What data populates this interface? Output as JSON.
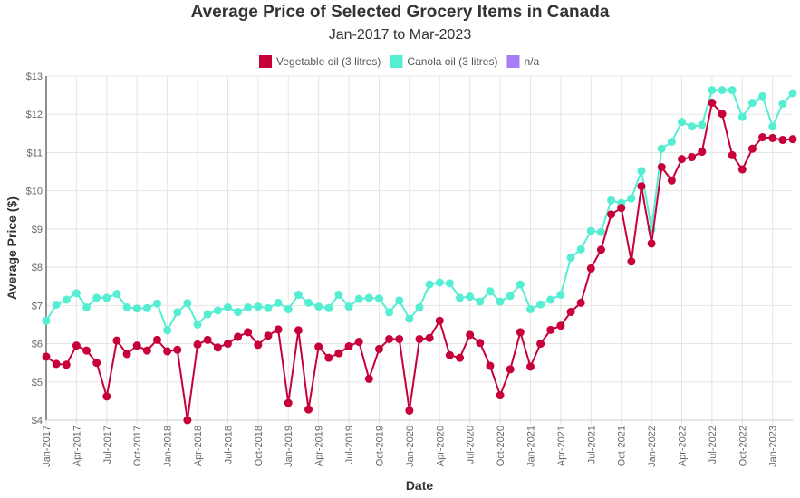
{
  "chart_data": {
    "type": "line",
    "title": "Average Price of Selected Grocery Items in Canada",
    "subtitle": "Jan-2017 to Mar-2023",
    "xlabel": "Date",
    "ylabel": "Average Price ($)",
    "ylim": [
      4,
      13
    ],
    "yticks": [
      "$4",
      "$5",
      "$6",
      "$7",
      "$8",
      "$9",
      "$10",
      "$11",
      "$12",
      "$13"
    ],
    "xticks": [
      "Jan-2017",
      "Apr-2017",
      "Jul-2017",
      "Oct-2017",
      "Jan-2018",
      "Apr-2018",
      "Jul-2018",
      "Oct-2018",
      "Jan-2019",
      "Apr-2019",
      "Jul-2019",
      "Oct-2019",
      "Jan-2020",
      "Apr-2020",
      "Jul-2020",
      "Oct-2020",
      "Jan-2021",
      "Apr-2021",
      "Jul-2021",
      "Oct-2021",
      "Jan-2022",
      "Apr-2022",
      "Jul-2022",
      "Oct-2022",
      "Jan-2023"
    ],
    "x_range": [
      "Jan-2017",
      "Mar-2023"
    ],
    "grid": true,
    "legend_position": "top",
    "legend": [
      {
        "name": "Vegetable oil (3 litres)",
        "color": "#c8003a"
      },
      {
        "name": "Canola oil (3 litres)",
        "color": "#55eed2"
      },
      {
        "name": "n/a",
        "color": "#a67cf7"
      }
    ],
    "series": [
      {
        "name": "Vegetable oil (3 litres)",
        "color": "#c8003a",
        "values": [
          5.66,
          5.47,
          5.45,
          5.95,
          5.82,
          5.5,
          4.62,
          6.08,
          5.73,
          5.95,
          5.82,
          6.1,
          5.8,
          5.84,
          4.0,
          5.98,
          6.1,
          5.9,
          6.0,
          6.18,
          6.3,
          5.97,
          6.21,
          6.37,
          4.45,
          6.35,
          4.28,
          5.92,
          5.63,
          5.75,
          5.93,
          6.05,
          5.08,
          5.86,
          6.12,
          6.12,
          4.25,
          6.12,
          6.15,
          6.6,
          5.7,
          5.63,
          6.23,
          6.02,
          5.42,
          4.65,
          5.33,
          6.3,
          5.4,
          6.0,
          6.36,
          6.47,
          6.83,
          7.07,
          7.97,
          8.46,
          9.38,
          9.55,
          8.15,
          10.12,
          8.62,
          10.62,
          10.27,
          10.83,
          10.88,
          11.02,
          12.3,
          12.01,
          10.93,
          10.56,
          11.1,
          11.4,
          11.38,
          11.33,
          11.35
        ]
      },
      {
        "name": "Canola oil (3 litres)",
        "color": "#55eed2",
        "values": [
          6.6,
          7.02,
          7.15,
          7.32,
          6.95,
          7.2,
          7.2,
          7.3,
          6.95,
          6.92,
          6.93,
          7.05,
          6.35,
          6.82,
          7.06,
          6.5,
          6.77,
          6.87,
          6.95,
          6.83,
          6.95,
          6.97,
          6.93,
          7.07,
          6.9,
          7.28,
          7.07,
          6.97,
          6.93,
          7.28,
          6.97,
          7.17,
          7.2,
          7.18,
          6.82,
          7.13,
          6.65,
          6.95,
          7.55,
          7.6,
          7.58,
          7.2,
          7.23,
          7.1,
          7.37,
          7.1,
          7.25,
          7.55,
          6.9,
          7.03,
          7.15,
          7.28,
          8.25,
          8.47,
          8.95,
          8.92,
          9.75,
          9.68,
          9.8,
          10.52,
          9.0,
          11.1,
          11.28,
          11.8,
          11.68,
          11.72,
          12.63,
          12.63,
          12.63,
          11.93,
          12.3,
          12.47,
          11.68,
          12.28,
          12.55
        ]
      }
    ]
  }
}
